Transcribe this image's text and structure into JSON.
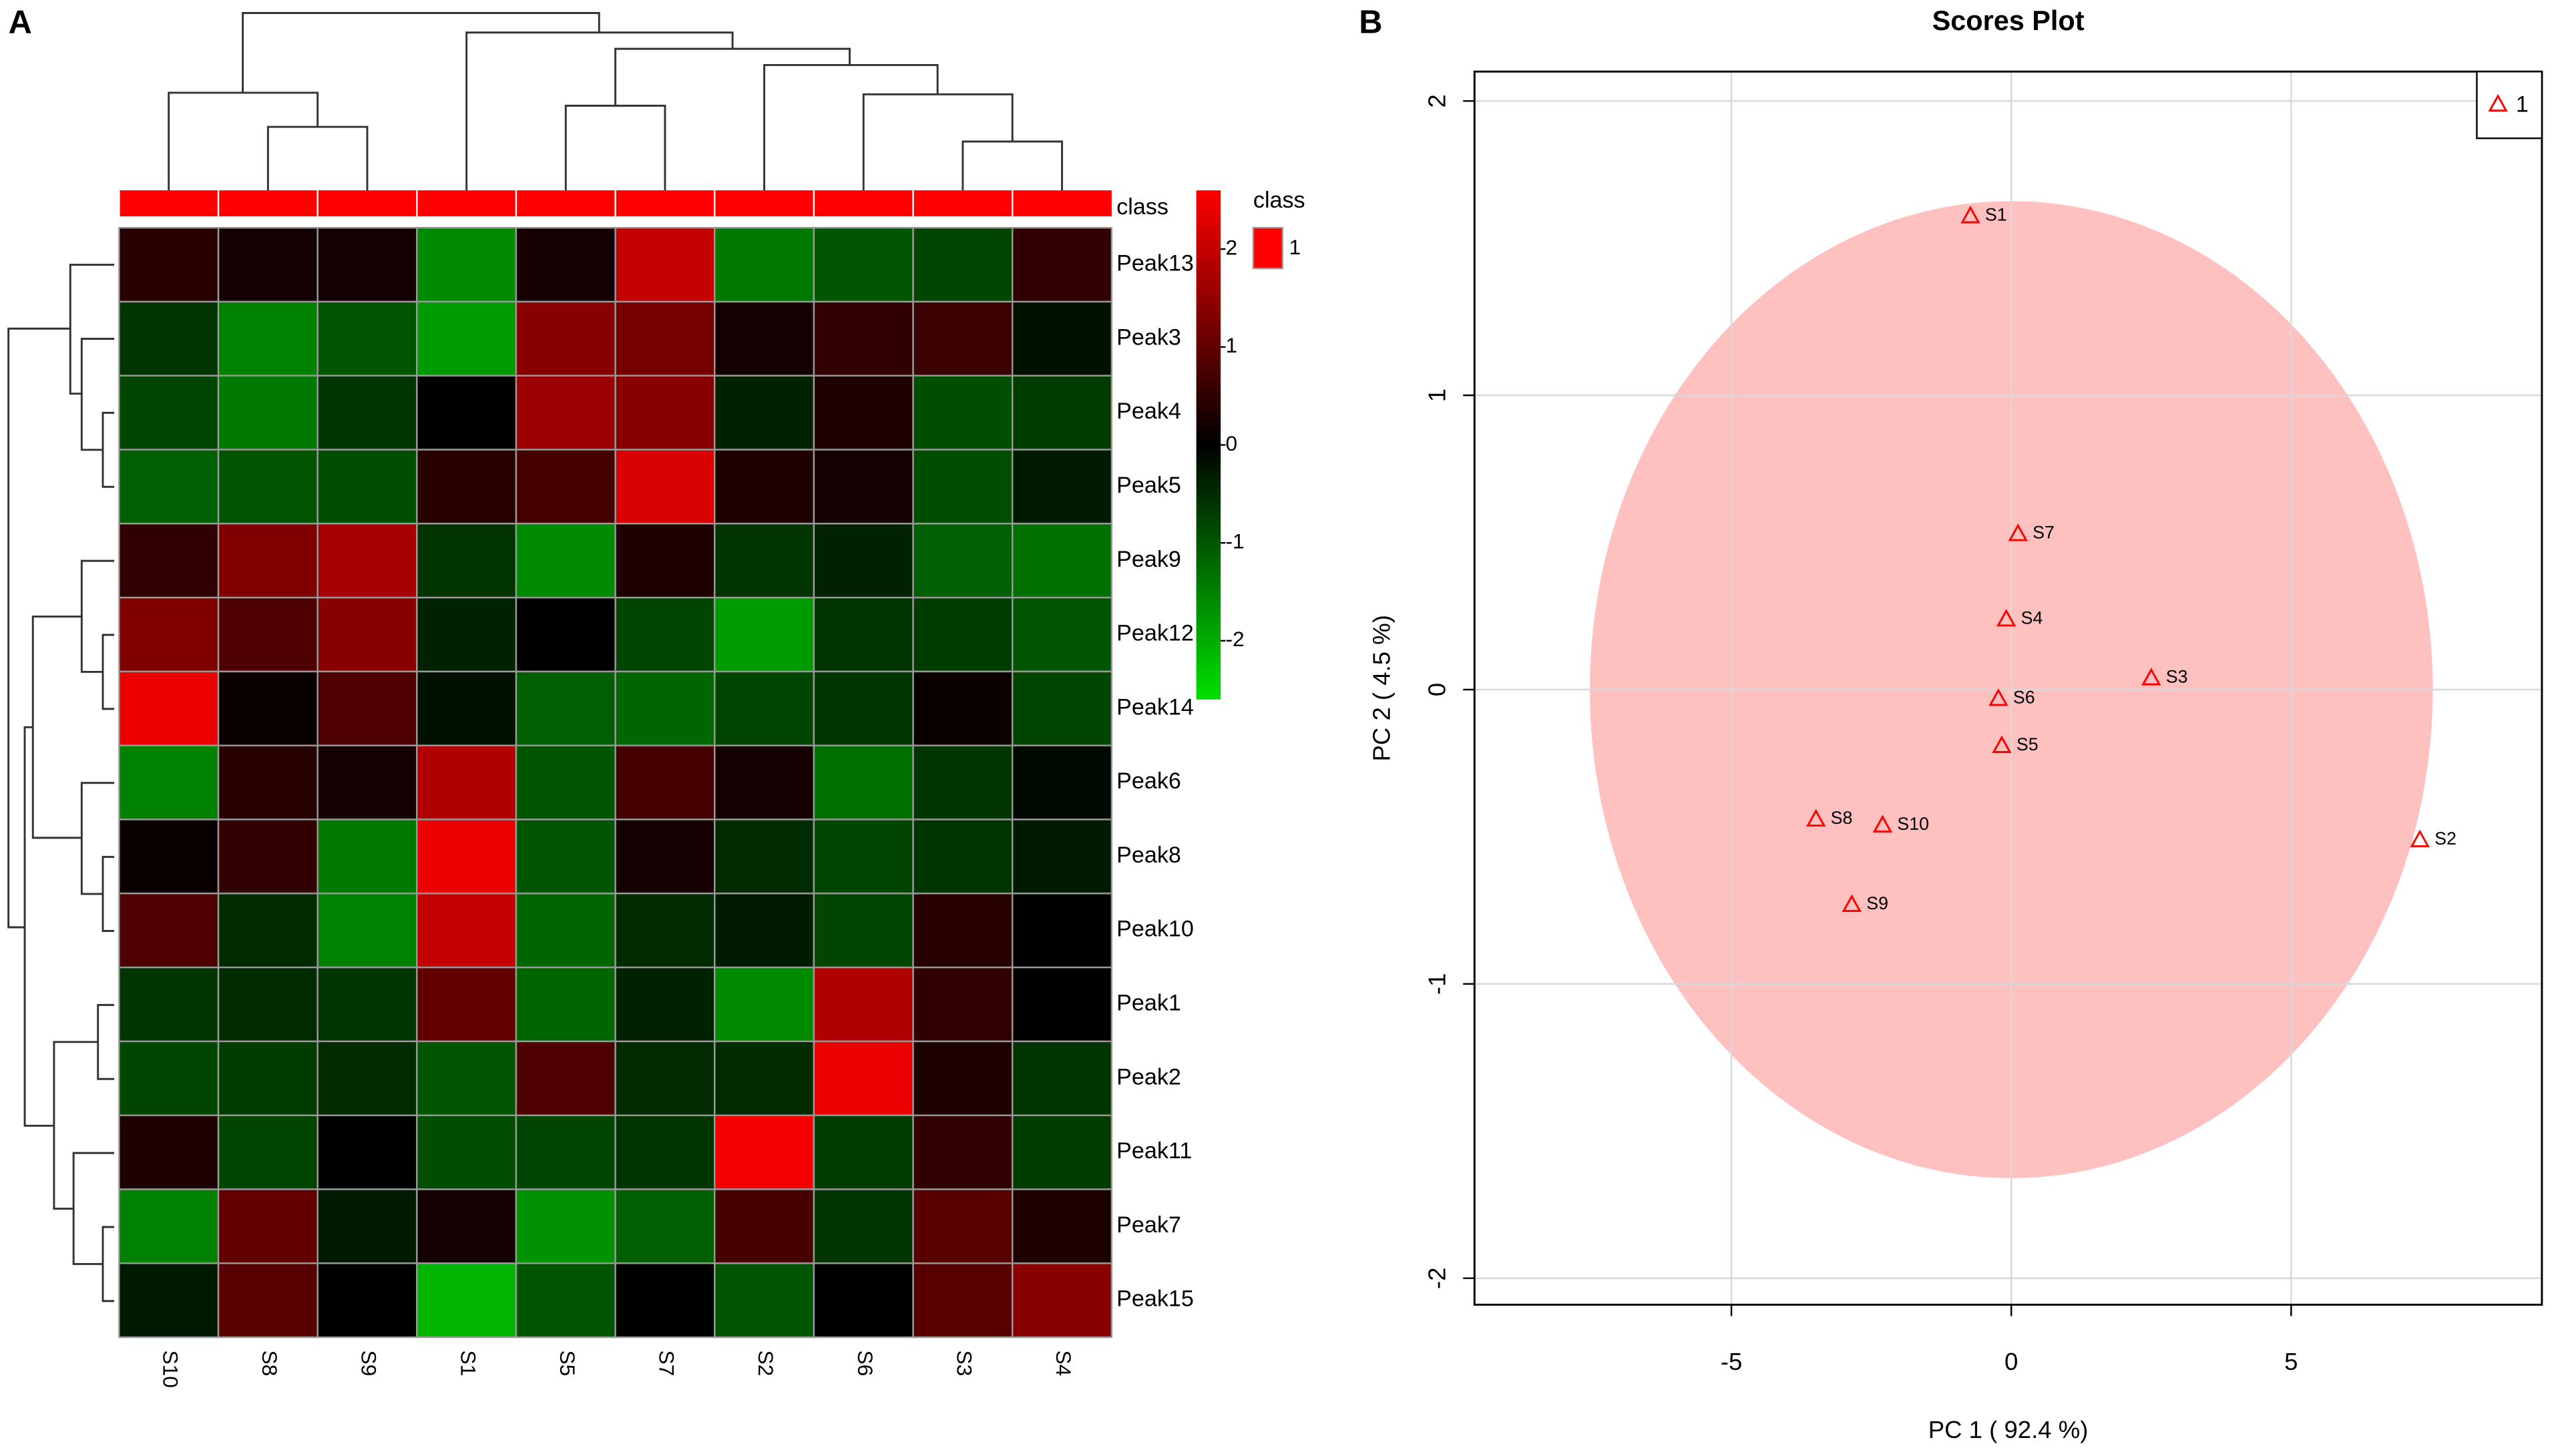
{
  "chart_data": [
    {
      "type": "heatmap",
      "panel_label": "A",
      "categories": [
        "S10",
        "S8",
        "S9",
        "S1",
        "S5",
        "S7",
        "S2",
        "S6",
        "S3",
        "S4"
      ],
      "rows": [
        "Peak13",
        "Peak3",
        "Peak4",
        "Peak5",
        "Peak9",
        "Peak12",
        "Peak14",
        "Peak6",
        "Peak8",
        "Peak10",
        "Peak1",
        "Peak2",
        "Peak11",
        "Peak7",
        "Peak15"
      ],
      "values": [
        [
          0.4,
          0.2,
          0.2,
          -1.6,
          0.2,
          2.0,
          -1.4,
          -1.0,
          -0.8,
          0.5
        ],
        [
          -0.6,
          -1.5,
          -1.0,
          -1.8,
          1.4,
          1.2,
          0.2,
          0.5,
          0.6,
          -0.2
        ],
        [
          -0.8,
          -1.4,
          -0.6,
          0.0,
          1.6,
          1.4,
          -0.4,
          0.3,
          -0.9,
          -0.7
        ],
        [
          -1.1,
          -1.0,
          -0.9,
          0.4,
          0.7,
          2.2,
          0.3,
          0.2,
          -0.9,
          -0.3
        ],
        [
          0.5,
          1.3,
          1.7,
          -0.6,
          -1.6,
          0.3,
          -0.6,
          -0.4,
          -1.1,
          -1.3
        ],
        [
          1.3,
          0.8,
          1.4,
          -0.4,
          0.0,
          -0.8,
          -1.8,
          -0.6,
          -0.7,
          -1.0
        ],
        [
          2.4,
          0.1,
          0.8,
          -0.2,
          -1.1,
          -1.2,
          -0.8,
          -0.6,
          0.1,
          -0.8
        ],
        [
          -1.5,
          0.4,
          0.2,
          1.8,
          -1.0,
          0.7,
          0.2,
          -1.3,
          -0.6,
          -0.1
        ],
        [
          0.1,
          0.5,
          -1.4,
          2.4,
          -1.0,
          0.2,
          -0.5,
          -0.8,
          -0.6,
          -0.3
        ],
        [
          0.8,
          -0.5,
          -1.5,
          2.0,
          -1.2,
          -0.5,
          -0.3,
          -0.8,
          0.4,
          0.0
        ],
        [
          -0.6,
          -0.5,
          -0.6,
          1.0,
          -1.2,
          -0.4,
          -1.6,
          1.8,
          0.5,
          0.0
        ],
        [
          -0.8,
          -0.7,
          -0.5,
          -1.0,
          0.8,
          -0.5,
          -0.5,
          2.4,
          0.3,
          -0.6
        ],
        [
          0.3,
          -0.8,
          0.0,
          -0.9,
          -0.8,
          -0.6,
          2.5,
          -0.7,
          0.5,
          -0.7
        ],
        [
          -1.5,
          1.0,
          -0.3,
          0.2,
          -1.7,
          -1.1,
          0.7,
          -0.6,
          0.9,
          0.3
        ],
        [
          -0.3,
          0.9,
          0.0,
          -2.1,
          -1.0,
          0.0,
          -1.0,
          0.0,
          0.9,
          1.4
        ]
      ],
      "zlim": [
        -2.6,
        2.6
      ],
      "zticks": [
        2,
        1,
        0,
        -1,
        -2
      ],
      "colors": {
        "low": "#00e000",
        "mid": "#000000",
        "high": "#ff0000"
      },
      "class_label": "class",
      "legend_title": "class",
      "class_name": "1",
      "class_color": "#ff0000"
    },
    {
      "type": "scatter",
      "panel_label": "B",
      "title": "Scores Plot",
      "xlabel": "PC 1 ( 92.4 %)",
      "ylabel": "PC 2 ( 4.5 %)",
      "xlim": [
        -9.59,
        9.48
      ],
      "ylim": [
        -2.09,
        2.1
      ],
      "xticks": [
        -5,
        0,
        5
      ],
      "yticks": [
        -2,
        -1,
        0,
        1,
        2
      ],
      "grid": true,
      "ellipse": {
        "center": [
          0,
          0
        ],
        "radii": [
          7.53,
          1.66
        ],
        "color": "#ffc0c0"
      },
      "legend": "top-right",
      "series": [
        {
          "name": "1",
          "color": "#ff0000",
          "labels": [
            "S1",
            "S7",
            "S4",
            "S3",
            "S6",
            "S5",
            "S8",
            "S10",
            "S2",
            "S9"
          ],
          "x": [
            -0.73,
            0.12,
            -0.09,
            2.5,
            -0.23,
            -0.17,
            -3.49,
            -2.3,
            7.3,
            -2.85
          ],
          "values": [
            1.61,
            0.53,
            0.24,
            0.04,
            -0.03,
            -0.19,
            -0.44,
            -0.46,
            -0.51,
            -0.73
          ]
        }
      ]
    }
  ]
}
